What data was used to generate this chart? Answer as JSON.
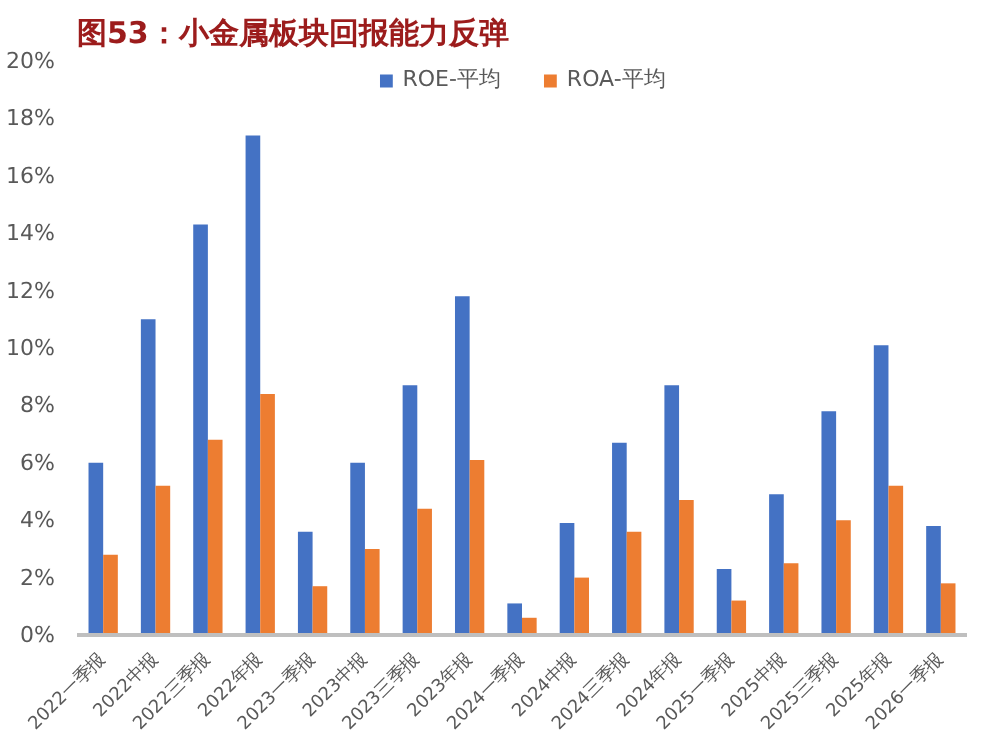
{
  "chart_data": {
    "type": "bar",
    "title": "图53：小金属板块回报能力反弹",
    "categories": [
      "2022一季报",
      "2022中报",
      "2022三季报",
      "2022年报",
      "2023一季报",
      "2023中报",
      "2023三季报",
      "2023年报",
      "2024一季报",
      "2024中报",
      "2024三季报",
      "2024年报",
      "2025一季报",
      "2025中报",
      "2025三季报",
      "2025年报",
      "2026一季报"
    ],
    "series": [
      {
        "name": "ROE-平均",
        "color": "#4472c4",
        "values": [
          6.0,
          11.0,
          14.3,
          17.4,
          3.6,
          6.0,
          8.7,
          11.8,
          1.1,
          3.9,
          6.7,
          8.7,
          2.3,
          4.9,
          7.8,
          10.1,
          3.8
        ]
      },
      {
        "name": "ROA-平均",
        "color": "#ed7d31",
        "values": [
          2.8,
          5.2,
          6.8,
          8.4,
          1.7,
          3.0,
          4.4,
          6.1,
          0.6,
          2.0,
          3.6,
          4.7,
          1.2,
          2.5,
          4.0,
          5.2,
          1.8
        ]
      }
    ],
    "ylim": [
      0,
      20
    ],
    "yticks": [
      {
        "value": 0,
        "label": "0%"
      },
      {
        "value": 2,
        "label": "2%"
      },
      {
        "value": 4,
        "label": "4%"
      },
      {
        "value": 6,
        "label": "6%"
      },
      {
        "value": 8,
        "label": "8%"
      },
      {
        "value": 10,
        "label": "10%"
      },
      {
        "value": 12,
        "label": "12%"
      },
      {
        "value": 14,
        "label": "14%"
      },
      {
        "value": 16,
        "label": "16%"
      },
      {
        "value": 18,
        "label": "18%"
      },
      {
        "value": 20,
        "label": "20%"
      }
    ],
    "grid": false,
    "legend": "top"
  }
}
